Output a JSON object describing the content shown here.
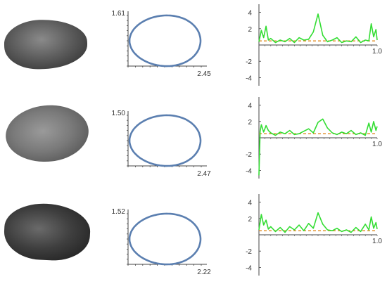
{
  "rows": [
    {
      "seed_image": "seed-photo",
      "contour": {
        "y_max_label": "1.61",
        "x_max_label": "2.45",
        "y_max": 1.61,
        "x_max": 2.45
      },
      "curvature": {
        "y_tick_labels": [
          "4",
          "2",
          "-2",
          "-4"
        ],
        "x_tick_label": "1.0",
        "ylim": [
          -5,
          5
        ],
        "reference_line": 0.5,
        "x": [
          0.0,
          0.02,
          0.04,
          0.06,
          0.08,
          0.1,
          0.14,
          0.18,
          0.22,
          0.26,
          0.3,
          0.34,
          0.38,
          0.42,
          0.46,
          0.5,
          0.54,
          0.58,
          0.62,
          0.66,
          0.7,
          0.74,
          0.78,
          0.82,
          0.86,
          0.9,
          0.93,
          0.95,
          0.97,
          0.99,
          1.0
        ],
        "y": [
          0.4,
          1.8,
          0.9,
          2.3,
          0.6,
          0.8,
          0.3,
          0.6,
          0.4,
          0.8,
          0.3,
          0.9,
          0.6,
          0.7,
          1.6,
          3.8,
          1.2,
          0.4,
          0.6,
          0.9,
          0.3,
          0.5,
          0.4,
          1.0,
          0.3,
          0.6,
          0.5,
          2.6,
          1.0,
          1.9,
          0.6
        ]
      }
    },
    {
      "seed_image": "seed-photo",
      "contour": {
        "y_max_label": "1.50",
        "x_max_label": "2.47",
        "y_max": 1.5,
        "x_max": 2.47
      },
      "curvature": {
        "y_tick_labels": [
          "4",
          "2",
          "-2",
          "-4"
        ],
        "x_tick_label": "1.0",
        "ylim": [
          -5,
          5
        ],
        "reference_line": 0.5,
        "x": [
          0.0,
          0.01,
          0.02,
          0.04,
          0.06,
          0.08,
          0.1,
          0.14,
          0.18,
          0.22,
          0.26,
          0.3,
          0.34,
          0.38,
          0.42,
          0.46,
          0.5,
          0.54,
          0.58,
          0.62,
          0.66,
          0.7,
          0.74,
          0.78,
          0.82,
          0.86,
          0.9,
          0.93,
          0.95,
          0.97,
          0.99,
          1.0
        ],
        "y": [
          -4.6,
          0.8,
          1.6,
          0.7,
          1.5,
          0.9,
          0.6,
          0.3,
          0.7,
          0.5,
          0.9,
          0.4,
          0.5,
          0.8,
          1.1,
          0.6,
          1.9,
          2.3,
          1.2,
          0.6,
          0.4,
          0.7,
          0.5,
          0.9,
          0.4,
          0.6,
          0.3,
          1.8,
          0.7,
          2.0,
          0.9,
          1.4
        ]
      }
    },
    {
      "seed_image": "seed-photo",
      "contour": {
        "y_max_label": "1.52",
        "x_max_label": "2.22",
        "y_max": 1.52,
        "x_max": 2.22
      },
      "curvature": {
        "y_tick_labels": [
          "4",
          "2",
          "-2",
          "-4"
        ],
        "x_tick_label": "1.0",
        "ylim": [
          -5,
          5
        ],
        "reference_line": 0.5,
        "x": [
          0.0,
          0.02,
          0.04,
          0.06,
          0.08,
          0.1,
          0.14,
          0.18,
          0.22,
          0.26,
          0.3,
          0.34,
          0.38,
          0.42,
          0.46,
          0.5,
          0.54,
          0.58,
          0.62,
          0.66,
          0.7,
          0.74,
          0.78,
          0.82,
          0.86,
          0.9,
          0.93,
          0.95,
          0.97,
          0.99,
          1.0
        ],
        "y": [
          0.6,
          2.5,
          1.2,
          1.8,
          0.7,
          1.0,
          0.4,
          0.9,
          0.3,
          1.0,
          0.6,
          1.2,
          0.5,
          1.4,
          0.8,
          2.7,
          1.3,
          0.6,
          0.5,
          0.8,
          0.4,
          0.6,
          0.3,
          0.9,
          0.4,
          1.3,
          0.6,
          2.2,
          0.8,
          1.5,
          0.7
        ]
      }
    }
  ],
  "colors": {
    "contour": "#5b7fb0",
    "curve": "#33dd33",
    "reference": "#e08a1e",
    "axis": "#444444"
  }
}
